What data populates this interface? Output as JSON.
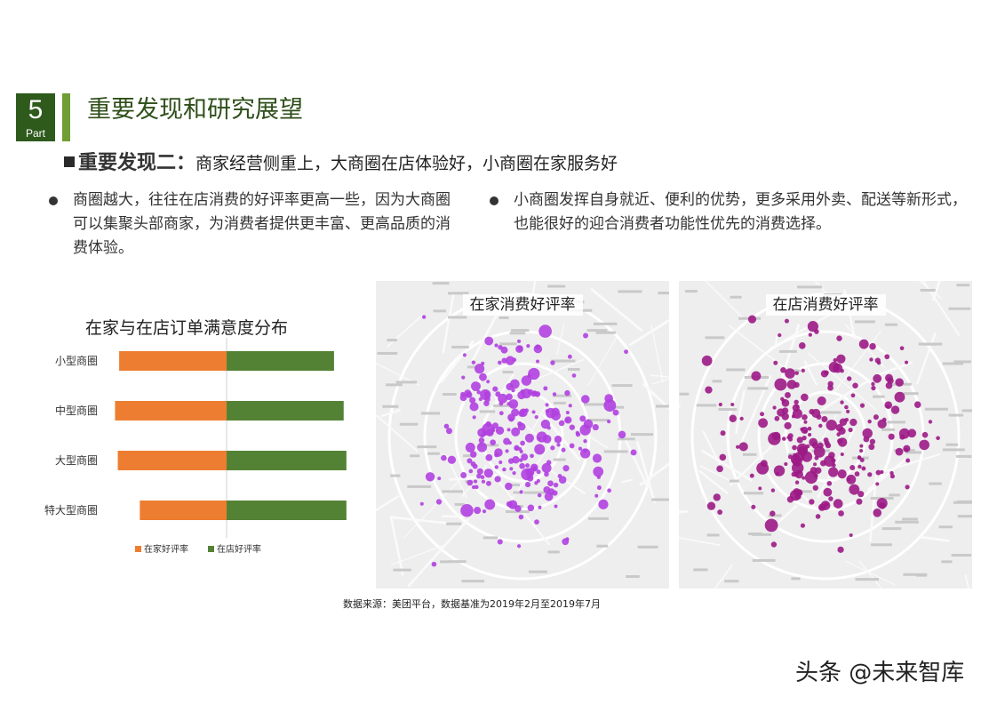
{
  "section": {
    "number": "5",
    "part": "Part",
    "title": "重要发现和研究展望"
  },
  "finding": {
    "head": "重要发现二：",
    "text": "商家经营侧重上，大商圈在店体验好，小商圈在家服务好"
  },
  "bullets": [
    "商圈越大，往往在店消费的好评率更高一些，因为大商圈可以集聚头部商家，为消费者提供更丰富、更高品质的消费体验。",
    "小商圈发挥自身就近、便利的优势，更多采用外卖、配送等新形式，也能很好的迎合消费者功能性优先的消费选择。"
  ],
  "chart_data": {
    "type": "bar",
    "title": "在家与在店订单满意度分布",
    "categories": [
      "小型商圈",
      "中型商圈",
      "大型商圈",
      "特大型商圈"
    ],
    "series": [
      {
        "name": "在家好评率",
        "values": [
          0.78,
          0.81,
          0.79,
          0.63
        ],
        "color": "#ed7d31"
      },
      {
        "name": "在店好评率",
        "values": [
          0.78,
          0.85,
          0.87,
          0.87
        ],
        "color": "#548235"
      }
    ],
    "legend": "bottom",
    "grid": false
  },
  "maps": [
    {
      "title": "在家消费好评率",
      "dot_color": "#b040e0"
    },
    {
      "title": "在店消费好评率",
      "dot_color": "#9c1a86"
    }
  ],
  "source": "数据来源：美团平台，数据基准为2019年2月至2019年7月",
  "watermark": "头条 @未来智库"
}
